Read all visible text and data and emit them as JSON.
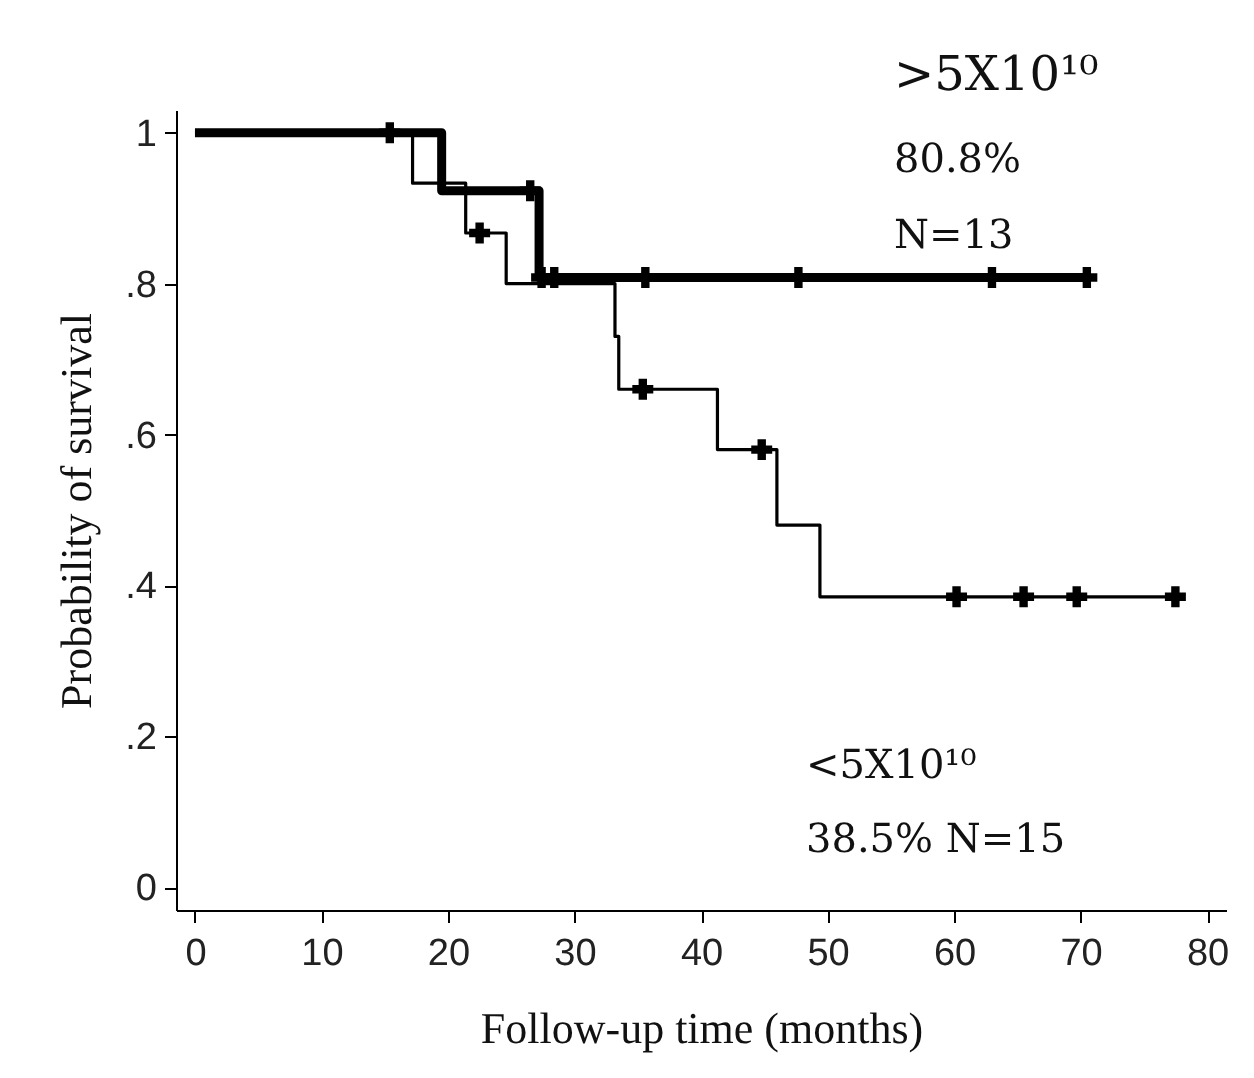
{
  "chart_data": {
    "type": "step",
    "xlabel": "Follow-up time (months)",
    "ylabel": "Probability of survival",
    "xlim": [
      -1.5,
      81.5
    ],
    "ylim": [
      -0.03,
      1.03
    ],
    "xticks": [
      0,
      10,
      20,
      30,
      40,
      50,
      60,
      70,
      80
    ],
    "yticks": [
      0,
      {
        "value": 0.2,
        "label": ".2"
      },
      {
        "value": 0.4,
        "label": ".4"
      },
      {
        "value": 0.6,
        "label": ".6"
      },
      {
        "value": 0.8,
        "label": ".8"
      },
      1
    ],
    "line_style": "solid",
    "series": [
      {
        "color": "#000000",
        "x": [
          0,
          19.5,
          27.2,
          70.5
        ],
        "values": [
          1,
          0.923,
          0.808,
          0.808
        ]
      },
      {
        "color": "#000000",
        "x": [
          0,
          17.2,
          21.4,
          24.6,
          33.2,
          33.5,
          41.3,
          46,
          49.4,
          78
        ],
        "values": [
          1,
          0.933,
          0.867,
          0.8,
          0.73,
          0.66,
          0.58,
          0.48,
          0.385,
          0.385
        ]
      },
      {
        "type": "scatter",
        "color": "#000000",
        "marker": "cross",
        "x": [
          15.4,
          26.5,
          27.4,
          28.4,
          35.6,
          47.7,
          63,
          70.5
        ],
        "values": [
          1,
          0.923,
          0.808,
          0.808,
          0.808,
          0.808,
          0.808,
          0.808
        ]
      },
      {
        "type": "scatter",
        "color": "#000000",
        "marker": "cross",
        "x": [
          22.5,
          35.4,
          44.8,
          60.2,
          65.5,
          69.7,
          77.5
        ],
        "values": [
          0.867,
          0.66,
          0.58,
          0.385,
          0.385,
          0.385,
          0.385
        ]
      }
    ],
    "annotations": [
      ">5X10¹⁰",
      "80.8%",
      "N=13",
      "<5X10¹⁰",
      "38.5%  N=15"
    ]
  }
}
